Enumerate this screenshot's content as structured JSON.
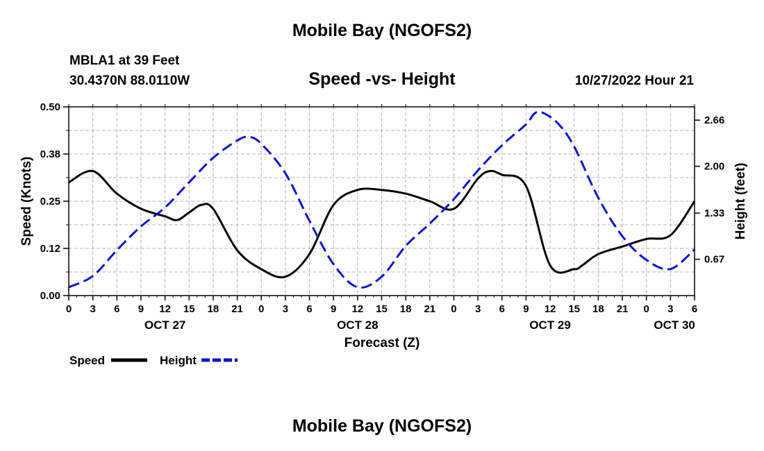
{
  "header": {
    "title": "Mobile Bay (NGOFS2)",
    "station": "MBLA1 at 39 Feet",
    "coords": "30.4370N  88.0110W",
    "subtitle": "Speed -vs- Height",
    "datetime": "10/27/2022 Hour 21"
  },
  "footer": {
    "title": "Mobile Bay (NGOFS2)"
  },
  "colors": {
    "speed": "#000000",
    "height": "#0a14c8",
    "grid": "#b4b4b4"
  },
  "chart_data": {
    "type": "line",
    "xlabel": "Forecast (Z)",
    "ylabel_left": "Speed (Knots)",
    "ylabel_right": "Height (feet)",
    "x_unit": "hours since OCT 27 00Z",
    "xlim": [
      0,
      78
    ],
    "ylim_left": [
      0,
      0.5
    ],
    "ylim_right": [
      0.15,
      2.85
    ],
    "x_tick_labels": [
      "0",
      "3",
      "6",
      "9",
      "12",
      "15",
      "18",
      "21",
      "0",
      "3",
      "6",
      "9",
      "12",
      "15",
      "18",
      "21",
      "0",
      "3",
      "6",
      "9",
      "12",
      "15",
      "18",
      "21",
      "0",
      "3",
      "6"
    ],
    "date_labels": [
      {
        "label": "OCT 27",
        "hour": 12
      },
      {
        "label": "OCT 28",
        "hour": 36
      },
      {
        "label": "OCT 29",
        "hour": 60
      },
      {
        "label": "OCT 30",
        "hour": 75.5
      }
    ],
    "y_left_ticks": [
      "0.00",
      "0.12",
      "0.25",
      "0.38",
      "0.50"
    ],
    "y_right_ticks": [
      "0.67",
      "1.33",
      "2.00",
      "2.66"
    ],
    "legend": [
      {
        "label": "Speed",
        "style": "solid"
      },
      {
        "label": "Height",
        "style": "dashed"
      }
    ],
    "series": [
      {
        "name": "Speed",
        "style": "solid",
        "x": [
          0,
          3,
          6,
          9,
          12,
          13.5,
          15,
          16.5,
          18,
          21,
          24,
          27,
          30,
          33,
          36,
          39,
          42,
          45,
          48,
          51,
          52.5,
          54,
          57,
          60,
          63,
          64,
          66,
          69,
          72,
          75,
          78
        ],
        "values": [
          0.3,
          0.33,
          0.27,
          0.23,
          0.21,
          0.2,
          0.22,
          0.24,
          0.23,
          0.12,
          0.07,
          0.05,
          0.11,
          0.24,
          0.28,
          0.28,
          0.27,
          0.25,
          0.23,
          0.31,
          0.33,
          0.32,
          0.29,
          0.08,
          0.07,
          0.08,
          0.11,
          0.13,
          0.15,
          0.16,
          0.25
        ]
      },
      {
        "name": "Height",
        "style": "dashed",
        "x": [
          0,
          3,
          6,
          9,
          12,
          15,
          18,
          21,
          22.5,
          24,
          27,
          30,
          33,
          36,
          39,
          42,
          45,
          48,
          51,
          54,
          57,
          58,
          59,
          61,
          63,
          66,
          69,
          72,
          75,
          78
        ],
        "values": [
          0.27,
          0.43,
          0.8,
          1.14,
          1.41,
          1.77,
          2.12,
          2.37,
          2.42,
          2.32,
          1.9,
          1.22,
          0.6,
          0.27,
          0.42,
          0.86,
          1.18,
          1.53,
          1.94,
          2.3,
          2.6,
          2.75,
          2.77,
          2.61,
          2.28,
          1.55,
          1.0,
          0.66,
          0.53,
          0.81
        ]
      }
    ]
  }
}
